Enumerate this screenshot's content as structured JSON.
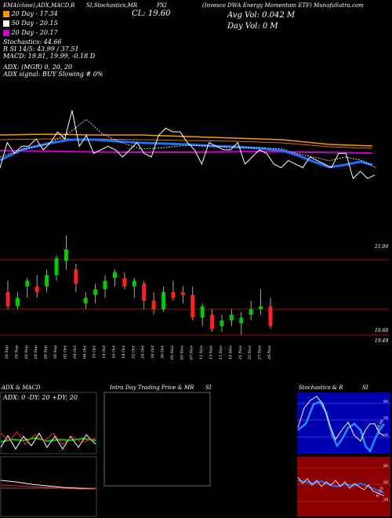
{
  "header": {
    "line1": "MunafaSutra.com",
    "series_labels": [
      {
        "name": "20 Day",
        "value": "17.34"
      },
      {
        "name": "50 Day",
        "value": "20.15"
      },
      {
        "name": "20 Day",
        "value": "20.17"
      }
    ],
    "title": "(Invesco  DWA Energy Momentum ETF) MunafaSutra.com",
    "symbol": "PXI",
    "close_label": "CL: 19.60",
    "avg_vol": "Avg Vol: 0.042  M",
    "day_vol": "Day Vol: 0   M",
    "indicators_line": "EMA(close),ADX,MACD,R",
    "ticker_prefix": "SI,Stochastics,MR",
    "stochastics": "Stochastics: 44.66",
    "r_si": "R                  SI 14/5: 43.99 / 37.51",
    "macd": "MACD: 19.81, 19.99, -0.18  D",
    "adx": "ADX:                           (MGR) 0, 20, 20",
    "adx_signal": "ADX  signal:                          BUY Slowing # 0%"
  },
  "colors": {
    "up": "#00cc00",
    "down": "#ff2020",
    "ema_blue": "#1e6fff",
    "orange": "#ff9900",
    "magenta": "#cc00cc",
    "grid": "#8b1a00"
  },
  "chart_data": [
    {
      "type": "line",
      "title": "EMA(close)",
      "series": [
        {
          "name": "close",
          "values": [
            19.9,
            20.6,
            20.3,
            20.5,
            20.5,
            20.7,
            20.4,
            20.6,
            20.9,
            20.7,
            21.5,
            20.5,
            20.8,
            20.3,
            20.4,
            20.5,
            20.4,
            20.2,
            20.4,
            20.6,
            20.3,
            20.2,
            20.8,
            21.0,
            20.9,
            20.9,
            20.6,
            20.4,
            20.0,
            20.6,
            20.5,
            20.4,
            20.4,
            20.6,
            20.0,
            20.2,
            20.4,
            20.3,
            20.0,
            19.9,
            20.1,
            20.0,
            19.9,
            20.2,
            20.1,
            20.0,
            19.9,
            20.3,
            20.3,
            19.6,
            19.8,
            19.6,
            19.7
          ]
        }
      ]
    },
    {
      "type": "candlestick",
      "price_levels": [
        "21.00",
        "19.60",
        "19.49"
      ],
      "dates": [
        "16 Sep",
        "18 Sep",
        "20 Sep",
        "24 Sep",
        "26 Sep",
        "30 Sep",
        "02 Oct",
        "04 Oct",
        "08 Oct",
        "10 Oct",
        "14 Oct",
        "16 Oct",
        "18 Oct",
        "22 Oct",
        "24 Oct",
        "28 Oct",
        "30 Oct",
        "01 Nov",
        "05 Nov",
        "07 Nov",
        "11 Nov",
        "13 Nov",
        "15 Nov",
        "19 Nov",
        "21 Nov",
        "25 Nov",
        "27 Nov",
        "29 Nov"
      ],
      "candles": [
        {
          "o": 20.2,
          "h": 20.4,
          "l": 19.9,
          "c": 19.95
        },
        {
          "o": 19.95,
          "h": 20.2,
          "l": 19.9,
          "c": 20.1
        },
        {
          "o": 20.3,
          "h": 20.45,
          "l": 20.1,
          "c": 20.4
        },
        {
          "o": 20.3,
          "h": 20.5,
          "l": 20.1,
          "c": 20.2
        },
        {
          "o": 20.3,
          "h": 20.6,
          "l": 20.2,
          "c": 20.5
        },
        {
          "o": 20.5,
          "h": 20.85,
          "l": 20.4,
          "c": 20.8
        },
        {
          "o": 20.75,
          "h": 21.2,
          "l": 20.6,
          "c": 20.95
        },
        {
          "o": 20.6,
          "h": 20.7,
          "l": 20.2,
          "c": 20.35
        },
        {
          "o": 20.0,
          "h": 20.2,
          "l": 19.9,
          "c": 20.1
        },
        {
          "o": 20.15,
          "h": 20.35,
          "l": 20.0,
          "c": 20.25
        },
        {
          "o": 20.25,
          "h": 20.5,
          "l": 20.1,
          "c": 20.4
        },
        {
          "o": 20.45,
          "h": 20.6,
          "l": 20.3,
          "c": 20.55
        },
        {
          "o": 20.45,
          "h": 20.55,
          "l": 20.25,
          "c": 20.3
        },
        {
          "o": 20.3,
          "h": 20.45,
          "l": 20.1,
          "c": 20.4
        },
        {
          "o": 20.35,
          "h": 20.4,
          "l": 19.9,
          "c": 20.05
        },
        {
          "o": 20.05,
          "h": 20.2,
          "l": 19.8,
          "c": 19.9
        },
        {
          "o": 19.9,
          "h": 20.3,
          "l": 19.85,
          "c": 20.2
        },
        {
          "o": 20.2,
          "h": 20.4,
          "l": 20.05,
          "c": 20.1
        },
        {
          "o": 20.2,
          "h": 20.3,
          "l": 20.0,
          "c": 20.15
        },
        {
          "o": 20.15,
          "h": 20.3,
          "l": 19.7,
          "c": 19.75
        },
        {
          "o": 19.75,
          "h": 20.0,
          "l": 19.6,
          "c": 19.95
        },
        {
          "o": 19.8,
          "h": 19.9,
          "l": 19.5,
          "c": 19.55
        },
        {
          "o": 19.6,
          "h": 19.8,
          "l": 19.5,
          "c": 19.7
        },
        {
          "o": 19.7,
          "h": 19.9,
          "l": 19.6,
          "c": 19.8
        },
        {
          "o": 19.65,
          "h": 19.85,
          "l": 19.45,
          "c": 19.75
        },
        {
          "o": 19.8,
          "h": 20.05,
          "l": 19.7,
          "c": 19.9
        },
        {
          "o": 19.9,
          "h": 20.25,
          "l": 19.8,
          "c": 19.95
        },
        {
          "o": 19.95,
          "h": 20.1,
          "l": 19.55,
          "c": 19.6
        }
      ]
    }
  ],
  "panels": {
    "adx_macd": {
      "title": "ADX  & MACD",
      "readout": "ADX: 0  -DY: 20  +DY: 20"
    },
    "intraday": {
      "title": "Intra  Day Trading Price  & MR",
      "suffix": "SI"
    },
    "stoch": {
      "title": "Stochastics & R",
      "suffix": "SI",
      "ticks_top": [
        "80",
        "50",
        "20"
      ],
      "ticks_bottom": [
        "80",
        "50",
        "20"
      ],
      "tag_top": "44.66",
      "tag_bottom": "41.05"
    }
  }
}
